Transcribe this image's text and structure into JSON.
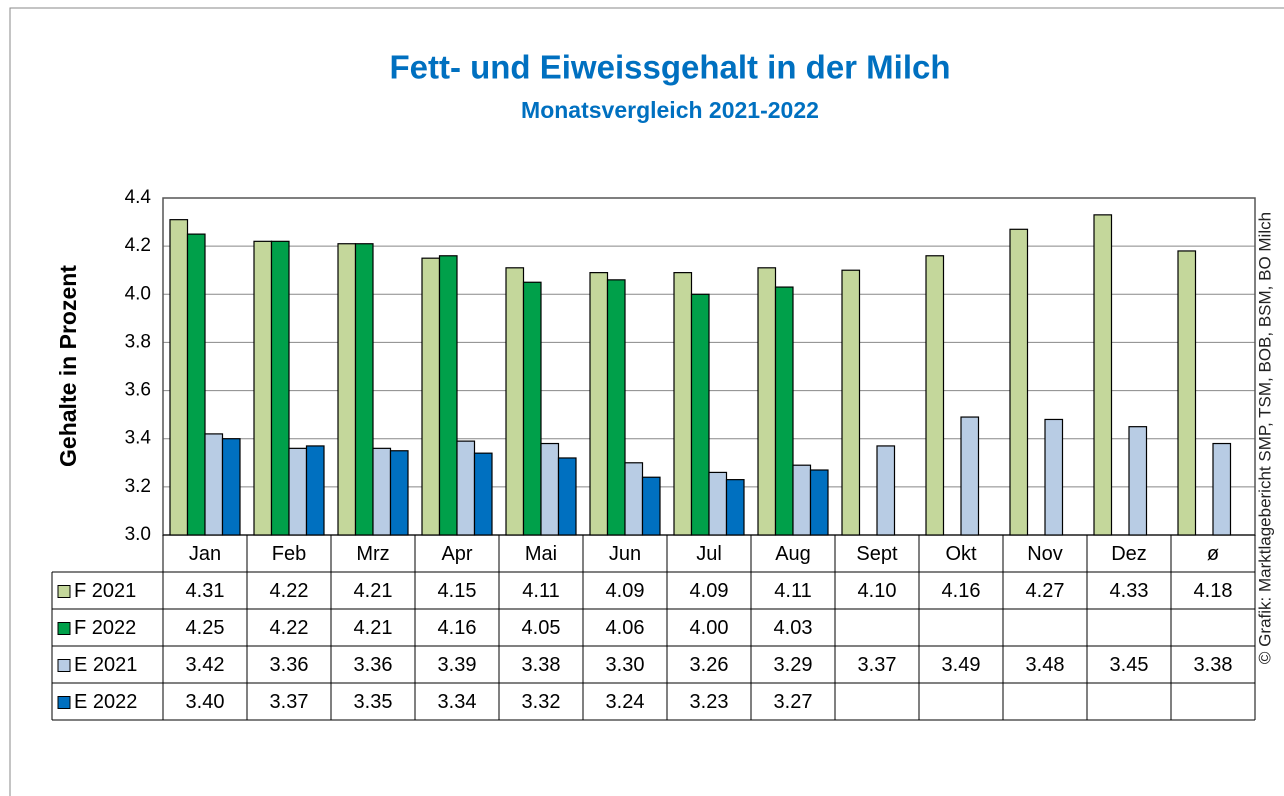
{
  "chart_data": {
    "type": "bar",
    "title": "Fett- und Eiweissgehalt in der Milch",
    "subtitle": "Monatsvergleich 2021-2022",
    "y_label": "Gehalte in Prozent",
    "source": "© Grafik: Marktlagebericht SMP, TSM, BOB, BSM, BO Milch",
    "categories": [
      "Jan",
      "Feb",
      "Mrz",
      "Apr",
      "Mai",
      "Jun",
      "Jul",
      "Aug",
      "Sept",
      "Okt",
      "Nov",
      "Dez",
      "ø"
    ],
    "series": [
      {
        "name": "F 2021",
        "color": "#c4d79b",
        "values": [
          4.31,
          4.22,
          4.21,
          4.15,
          4.11,
          4.09,
          4.09,
          4.11,
          4.1,
          4.16,
          4.27,
          4.33,
          4.18
        ],
        "value_labels": [
          "4.31",
          "4.22",
          "4.21",
          "4.15",
          "4.11",
          "4.09",
          "4.09",
          "4.11",
          "4.10",
          "4.16",
          "4.27",
          "4.33",
          "4.18"
        ]
      },
      {
        "name": "F 2022",
        "color": "#00a04a",
        "values": [
          4.25,
          4.22,
          4.21,
          4.16,
          4.05,
          4.06,
          4.0,
          4.03,
          null,
          null,
          null,
          null,
          null
        ],
        "value_labels": [
          "4.25",
          "4.22",
          "4.21",
          "4.16",
          "4.05",
          "4.06",
          "4.00",
          "4.03",
          null,
          null,
          null,
          null,
          null
        ]
      },
      {
        "name": "E 2021",
        "color": "#b8cce4",
        "values": [
          3.42,
          3.36,
          3.36,
          3.39,
          3.38,
          3.3,
          3.26,
          3.29,
          3.37,
          3.49,
          3.48,
          3.45,
          3.38
        ],
        "value_labels": [
          "3.42",
          "3.36",
          "3.36",
          "3.39",
          "3.38",
          "3.30",
          "3.26",
          "3.29",
          "3.37",
          "3.49",
          "3.48",
          "3.45",
          "3.38"
        ]
      },
      {
        "name": "E 2022",
        "color": "#0070c0",
        "values": [
          3.4,
          3.37,
          3.35,
          3.34,
          3.32,
          3.24,
          3.23,
          3.27,
          null,
          null,
          null,
          null,
          null
        ],
        "value_labels": [
          "3.40",
          "3.37",
          "3.35",
          "3.34",
          "3.32",
          "3.24",
          "3.23",
          "3.27",
          null,
          null,
          null,
          null,
          null
        ]
      }
    ],
    "ylim": [
      3.0,
      4.4
    ],
    "yticks": [
      {
        "value": 3.0,
        "label": "3.0"
      },
      3.2,
      3.4,
      3.6,
      3.8,
      {
        "value": 4.0,
        "label": "4.0"
      },
      4.2,
      4.4
    ],
    "grid": true
  }
}
